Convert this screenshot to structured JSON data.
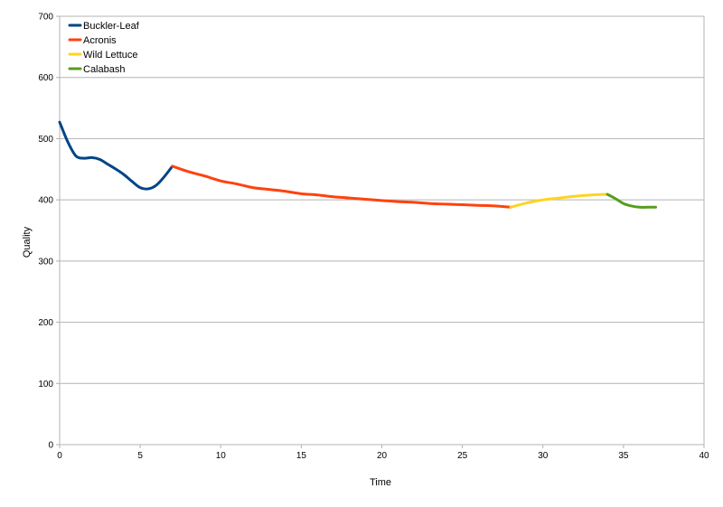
{
  "chart_data": {
    "type": "line",
    "title": "",
    "xlabel": "Time",
    "ylabel": "Quality",
    "xlim": [
      0,
      40
    ],
    "ylim": [
      0,
      700
    ],
    "x_ticks": [
      0,
      5,
      10,
      15,
      20,
      25,
      30,
      35,
      40
    ],
    "y_ticks": [
      0,
      100,
      200,
      300,
      400,
      500,
      600,
      700
    ],
    "grid": "horizontal",
    "legend_position": "top-left",
    "series": [
      {
        "name": "Buckler-Leaf",
        "color": "#004586",
        "points": [
          [
            0,
            527
          ],
          [
            0.5,
            495
          ],
          [
            1,
            472
          ],
          [
            1.5,
            468
          ],
          [
            2,
            469
          ],
          [
            2.5,
            466
          ],
          [
            3,
            458
          ],
          [
            3.5,
            450
          ],
          [
            4,
            441
          ],
          [
            4.5,
            430
          ],
          [
            5,
            420
          ],
          [
            5.5,
            418
          ],
          [
            6,
            424
          ],
          [
            6.5,
            438
          ],
          [
            7,
            455
          ]
        ]
      },
      {
        "name": "Acronis",
        "color": "#ff420e",
        "points": [
          [
            7,
            455
          ],
          [
            8,
            446
          ],
          [
            9,
            439
          ],
          [
            10,
            431
          ],
          [
            11,
            426
          ],
          [
            12,
            420
          ],
          [
            13,
            417
          ],
          [
            14,
            414
          ],
          [
            15,
            410
          ],
          [
            16,
            408
          ],
          [
            17,
            405
          ],
          [
            18,
            403
          ],
          [
            19,
            401
          ],
          [
            20,
            399
          ],
          [
            21,
            397
          ],
          [
            22,
            396
          ],
          [
            23,
            394
          ],
          [
            24,
            393
          ],
          [
            25,
            392
          ],
          [
            26,
            391
          ],
          [
            27,
            390
          ],
          [
            28,
            388
          ]
        ]
      },
      {
        "name": "Wild Lettuce",
        "color": "#ffd320",
        "points": [
          [
            28,
            388
          ],
          [
            29,
            395
          ],
          [
            30,
            400
          ],
          [
            31,
            403
          ],
          [
            32,
            406
          ],
          [
            33,
            408
          ],
          [
            34,
            409
          ]
        ]
      },
      {
        "name": "Calabash",
        "color": "#579d1c",
        "points": [
          [
            34,
            409
          ],
          [
            34.5,
            402
          ],
          [
            35,
            394
          ],
          [
            35.5,
            390
          ],
          [
            36,
            388
          ],
          [
            36.5,
            388
          ],
          [
            37,
            388
          ]
        ]
      }
    ]
  }
}
